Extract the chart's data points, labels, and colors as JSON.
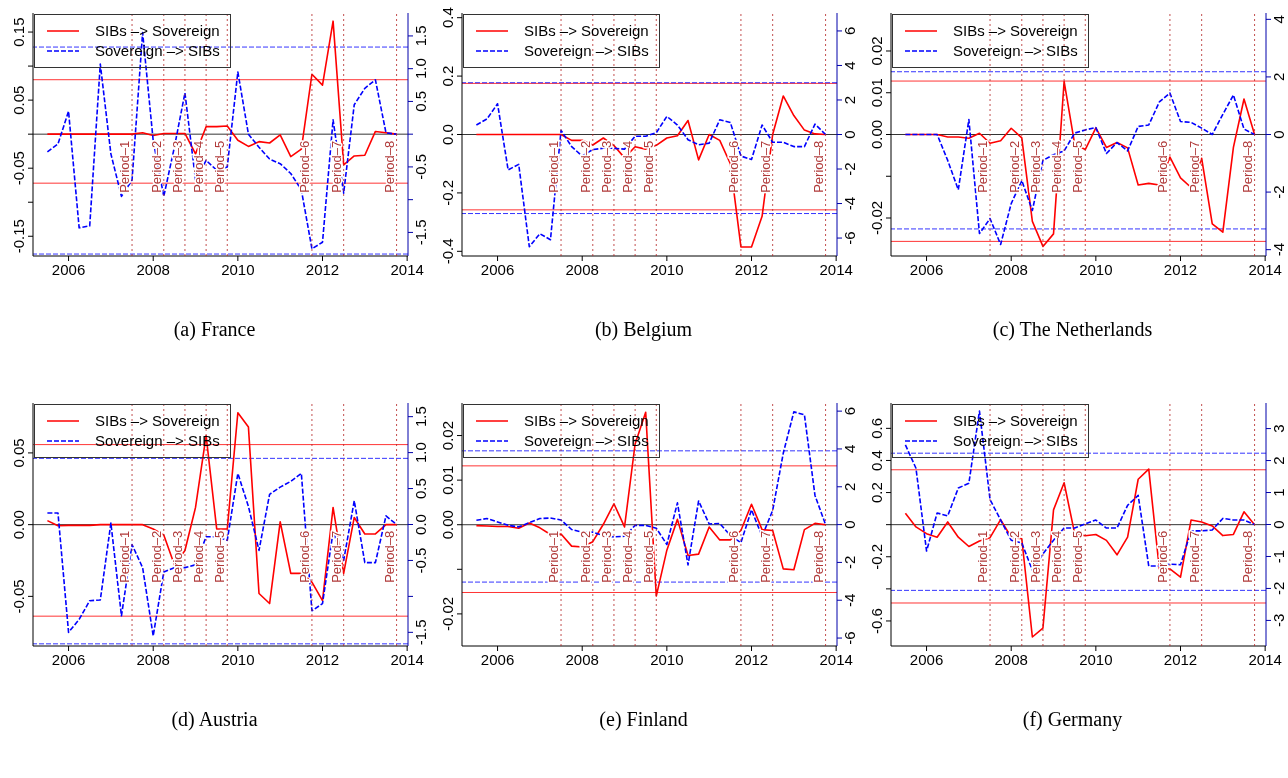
{
  "chart_data": [
    {
      "type": "line",
      "title": "(a) France",
      "x": [
        2005.5,
        2005.75,
        2006,
        2006.25,
        2006.5,
        2006.75,
        2007,
        2007.25,
        2007.5,
        2007.75,
        2008,
        2008.25,
        2008.5,
        2008.75,
        2009,
        2009.25,
        2009.5,
        2009.75,
        2010,
        2010.25,
        2010.5,
        2010.75,
        2011,
        2011.25,
        2011.5,
        2011.75,
        2012,
        2012.25,
        2012.5,
        2012.75,
        2013,
        2013.25,
        2013.5,
        2013.75
      ],
      "series": [
        {
          "name": "SIBs –> Sovereign",
          "color": "#ff0000",
          "line_style": "solid",
          "values": [
            0,
            0,
            0,
            0,
            0,
            0,
            0,
            0,
            0,
            0.002,
            -0.002,
            0.001,
            0.001,
            0.001,
            -0.029,
            0.011,
            0.011,
            0.012,
            -0.009,
            -0.018,
            -0.011,
            -0.013,
            -0.001,
            -0.033,
            -0.022,
            0.088,
            0.072,
            0.166,
            -0.045,
            -0.032,
            -0.031,
            0.004,
            0.002,
            0
          ]
        },
        {
          "name": "Sovereign –> SIBs",
          "color": "#0000ff",
          "line_style": "dashed",
          "axis": "y2",
          "values": [
            -0.27,
            -0.15,
            0.35,
            -1.43,
            -1.4,
            1.07,
            -0.3,
            -0.95,
            -0.7,
            1.55,
            -0.1,
            -0.95,
            -0.2,
            0.63,
            -0.7,
            -0.4,
            -0.55,
            -0.5,
            0.95,
            0,
            -0.2,
            -0.38,
            -0.45,
            -0.6,
            -0.85,
            -1.75,
            -1.65,
            0.22,
            -0.9,
            0.45,
            0.7,
            0.83,
            0.02,
            0
          ]
        }
      ],
      "xlim": [
        2005.16,
        2014.02
      ],
      "xticks": [
        2006,
        2008,
        2010,
        2012,
        2014
      ],
      "ylim": [
        -0.179,
        0.178
      ],
      "yticks": [
        -0.15,
        {
          "value": -0.1,
          "label": null
        },
        -0.05,
        {
          "value": 0,
          "label": null
        },
        0.05,
        {
          "value": 0.1,
          "label": null
        },
        0.15
      ],
      "y2lim": [
        -1.86,
        1.85
      ],
      "y2ticks": [
        -1.5,
        {
          "value": -1,
          "label": null
        },
        -0.5,
        {
          "value": 0,
          "label": null
        },
        0.5,
        {
          "value": 1,
          "label": "1.0"
        },
        1.5
      ],
      "ref_lines": [
        {
          "axis": "y",
          "value": 0,
          "color": "#000000",
          "line_style": "solid"
        },
        {
          "axis": "y",
          "value": 0.08,
          "color": "#ff0000",
          "line_style": "solid"
        },
        {
          "axis": "y",
          "value": -0.072,
          "color": "#ff0000",
          "line_style": "solid"
        },
        {
          "axis": "y2",
          "value": 1.33,
          "color": "#0000ff",
          "line_style": "dashed"
        },
        {
          "axis": "y2",
          "value": -1.83,
          "color": "#0000ff",
          "line_style": "dashed"
        },
        {
          "axis": "x",
          "value": 2007.5,
          "label": "Period–1",
          "color": "#b22222",
          "line_style": "dotted"
        },
        {
          "axis": "x",
          "value": 2008.25,
          "label": "Period–2",
          "color": "#b22222",
          "line_style": "dotted"
        },
        {
          "axis": "x",
          "value": 2008.75,
          "label": "Period–3",
          "color": "#b22222",
          "line_style": "dotted"
        },
        {
          "axis": "x",
          "value": 2009.25,
          "label": "Period–4",
          "color": "#b22222",
          "line_style": "dotted"
        },
        {
          "axis": "x",
          "value": 2009.75,
          "label": "Period–5",
          "color": "#b22222",
          "line_style": "dotted"
        },
        {
          "axis": "x",
          "value": 2011.75,
          "label": "Period–6",
          "color": "#b22222",
          "line_style": "dotted"
        },
        {
          "axis": "x",
          "value": 2012.5,
          "label": "Period–7",
          "color": "#b22222",
          "line_style": "dotted"
        },
        {
          "axis": "x",
          "value": 2013.75,
          "label": "Period–8",
          "color": "#b22222",
          "line_style": "dotted"
        }
      ],
      "legend": "top left"
    },
    {
      "type": "line",
      "title": "(b) Belgium",
      "x": [
        2005.5,
        2005.75,
        2006,
        2006.25,
        2006.5,
        2006.75,
        2007,
        2007.25,
        2007.5,
        2007.75,
        2008,
        2008.25,
        2008.5,
        2008.75,
        2009,
        2009.25,
        2009.5,
        2009.75,
        2010,
        2010.25,
        2010.5,
        2010.75,
        2011,
        2011.25,
        2011.5,
        2011.75,
        2012,
        2012.25,
        2012.5,
        2012.75,
        2013,
        2013.25,
        2013.5,
        2013.75
      ],
      "series": [
        {
          "name": "SIBs –> Sovereign",
          "color": "#ff0000",
          "line_style": "solid",
          "values": [
            0,
            0,
            0,
            0,
            0,
            0,
            0,
            0,
            0,
            -0.02,
            -0.02,
            -0.036,
            -0.012,
            -0.038,
            -0.08,
            -0.042,
            -0.05,
            -0.037,
            -0.012,
            -0.004,
            0.048,
            -0.087,
            0,
            -0.02,
            -0.1,
            -0.385,
            -0.385,
            -0.28,
            0,
            0.132,
            0.065,
            0.015,
            0.002,
            0
          ]
        },
        {
          "name": "Sovereign –> SIBs",
          "color": "#0000ff",
          "line_style": "dashed",
          "axis": "y2",
          "values": [
            0.55,
            0.9,
            1.78,
            -2.05,
            -1.73,
            -6.5,
            -5.75,
            -6.1,
            0.24,
            -0.7,
            -1.25,
            -0.87,
            -0.8,
            -0.8,
            -0.85,
            -0.1,
            -0.1,
            0.1,
            1.05,
            0.55,
            -0.3,
            -0.6,
            -0.5,
            0.85,
            0.7,
            -1.25,
            -1.45,
            0.55,
            -0.45,
            -0.45,
            -0.7,
            -0.7,
            0.6,
            0
          ]
        }
      ],
      "xlim": [
        2005.16,
        2014.02
      ],
      "xticks": [
        2006,
        2008,
        2010,
        2012,
        2014
      ],
      "ylim": [
        -0.416,
        0.416
      ],
      "yticks": [
        -0.4,
        -0.2,
        {
          "value": 0,
          "label": "0.0"
        },
        0.2,
        0.4
      ],
      "y2lim": [
        -7.04,
        7.04
      ],
      "y2ticks": [
        -6,
        -4,
        -2,
        0,
        2,
        4,
        6
      ],
      "ref_lines": [
        {
          "axis": "y",
          "value": 0,
          "color": "#000000",
          "line_style": "solid"
        },
        {
          "axis": "y",
          "value": 0.175,
          "color": "#ff0000",
          "line_style": "solid"
        },
        {
          "axis": "y",
          "value": -0.258,
          "color": "#ff0000",
          "line_style": "solid"
        },
        {
          "axis": "y2",
          "value": 3,
          "color": "#0000ff",
          "line_style": "dashed"
        },
        {
          "axis": "y2",
          "value": -4.58,
          "color": "#0000ff",
          "line_style": "dashed"
        },
        {
          "axis": "x",
          "value": 2007.5,
          "label": "Period–1",
          "color": "#b22222",
          "line_style": "dotted"
        },
        {
          "axis": "x",
          "value": 2008.25,
          "label": "Period–2",
          "color": "#b22222",
          "line_style": "dotted"
        },
        {
          "axis": "x",
          "value": 2008.75,
          "label": "Period–3",
          "color": "#b22222",
          "line_style": "dotted"
        },
        {
          "axis": "x",
          "value": 2009.25,
          "label": "Period–4",
          "color": "#b22222",
          "line_style": "dotted"
        },
        {
          "axis": "x",
          "value": 2009.75,
          "label": "Period–5",
          "color": "#b22222",
          "line_style": "dotted"
        },
        {
          "axis": "x",
          "value": 2011.75,
          "label": "Period–6",
          "color": "#b22222",
          "line_style": "dotted"
        },
        {
          "axis": "x",
          "value": 2012.5,
          "label": "Period–7",
          "color": "#b22222",
          "line_style": "dotted"
        },
        {
          "axis": "x",
          "value": 2013.75,
          "label": "Period–8",
          "color": "#b22222",
          "line_style": "dotted"
        }
      ],
      "legend": "top left"
    },
    {
      "type": "line",
      "title": "(c) The Netherlands",
      "x": [
        2005.5,
        2005.75,
        2006,
        2006.25,
        2006.5,
        2006.75,
        2007,
        2007.25,
        2007.5,
        2007.75,
        2008,
        2008.25,
        2008.5,
        2008.75,
        2009,
        2009.25,
        2009.5,
        2009.75,
        2010,
        2010.25,
        2010.5,
        2010.75,
        2011,
        2011.25,
        2011.5,
        2011.75,
        2012,
        2012.25,
        2012.5,
        2012.75,
        2013,
        2013.25,
        2013.5,
        2013.75
      ],
      "series": [
        {
          "name": "SIBs –> Sovereign",
          "color": "#ff0000",
          "line_style": "solid",
          "values": [
            0,
            0,
            0,
            0,
            -0.0006,
            -0.0006,
            -0.0009,
            0.0003,
            -0.0021,
            -0.0015,
            0.0015,
            -0.0008,
            -0.0208,
            -0.0268,
            -0.0238,
            0.0127,
            -0.0023,
            -0.0036,
            0.0016,
            -0.0031,
            -0.0019,
            -0.0032,
            -0.0121,
            -0.0117,
            -0.0121,
            -0.0054,
            -0.0104,
            -0.0127,
            -0.0057,
            -0.0214,
            -0.0234,
            -0.0031,
            0.0085,
            0
          ]
        },
        {
          "name": "Sovereign –> SIBs",
          "color": "#0000ff",
          "line_style": "dashed",
          "axis": "y2",
          "values": [
            0,
            0,
            0,
            0,
            -0.9,
            -1.92,
            0.52,
            -3.44,
            -2.92,
            -3.82,
            -2.4,
            -1.6,
            -2.64,
            -0.9,
            -0.7,
            -0.57,
            0.05,
            0.16,
            0.24,
            -0.66,
            -0.28,
            -0.57,
            0.28,
            0.33,
            1.13,
            1.44,
            0.45,
            0.42,
            0.22,
            0,
            0.7,
            1.37,
            0.19,
            0
          ]
        }
      ],
      "xlim": [
        2005.16,
        2014.02
      ],
      "xticks": [
        2006,
        2008,
        2010,
        2012,
        2014
      ],
      "ylim": [
        -0.0291,
        0.0291
      ],
      "yticks": [
        -0.02,
        {
          "value": -0.01,
          "label": null
        },
        {
          "value": 0,
          "label": "0.00"
        },
        0.01,
        0.02
      ],
      "y2lim": [
        -4.22,
        4.22
      ],
      "y2ticks": [
        -4,
        -2,
        0,
        2,
        4
      ],
      "ref_lines": [
        {
          "axis": "y",
          "value": 0,
          "color": "#000000",
          "line_style": "solid"
        },
        {
          "axis": "y",
          "value": 0.0128,
          "color": "#ff0000",
          "line_style": "solid"
        },
        {
          "axis": "y",
          "value": -0.0256,
          "color": "#ff0000",
          "line_style": "solid"
        },
        {
          "axis": "y2",
          "value": 2.18,
          "color": "#0000ff",
          "line_style": "dashed"
        },
        {
          "axis": "y2",
          "value": -3.28,
          "color": "#0000ff",
          "line_style": "dashed"
        },
        {
          "axis": "x",
          "value": 2007.5,
          "label": "Period–1",
          "color": "#b22222",
          "line_style": "dotted"
        },
        {
          "axis": "x",
          "value": 2008.25,
          "label": "Period–2",
          "color": "#b22222",
          "line_style": "dotted"
        },
        {
          "axis": "x",
          "value": 2008.75,
          "label": "Period–3",
          "color": "#b22222",
          "line_style": "dotted"
        },
        {
          "axis": "x",
          "value": 2009.25,
          "label": "Period–4",
          "color": "#b22222",
          "line_style": "dotted"
        },
        {
          "axis": "x",
          "value": 2009.75,
          "label": "Period–5",
          "color": "#b22222",
          "line_style": "dotted"
        },
        {
          "axis": "x",
          "value": 2011.75,
          "label": "Period–6",
          "color": "#b22222",
          "line_style": "dotted"
        },
        {
          "axis": "x",
          "value": 2012.5,
          "label": "Period–7",
          "color": "#b22222",
          "line_style": "dotted"
        },
        {
          "axis": "x",
          "value": 2013.75,
          "label": "Period–8",
          "color": "#b22222",
          "line_style": "dotted"
        }
      ],
      "legend": "top left"
    },
    {
      "type": "line",
      "title": "(d) Austria",
      "x": [
        2005.5,
        2005.75,
        2006,
        2006.25,
        2006.5,
        2006.75,
        2007,
        2007.25,
        2007.5,
        2007.75,
        2008,
        2008.25,
        2008.5,
        2008.75,
        2009,
        2009.25,
        2009.5,
        2009.75,
        2010,
        2010.25,
        2010.5,
        2010.75,
        2011,
        2011.25,
        2011.5,
        2011.75,
        2012,
        2012.25,
        2012.5,
        2012.75,
        2013,
        2013.25,
        2013.5,
        2013.75
      ],
      "series": [
        {
          "name": "SIBs –> Sovereign",
          "color": "#ff0000",
          "line_style": "solid",
          "values": [
            0.0028,
            -0.0008,
            -0.0005,
            -0.0005,
            -0.0005,
            0,
            0,
            0,
            0,
            0,
            -0.003,
            -0.0072,
            -0.028,
            -0.018,
            0.012,
            0.062,
            -0.003,
            -0.003,
            0.078,
            0.068,
            -0.048,
            -0.055,
            0.002,
            -0.034,
            -0.034,
            -0.04,
            -0.053,
            0.012,
            -0.034,
            0.005,
            -0.0065,
            -0.0065,
            0,
            0
          ]
        },
        {
          "name": "Sovereign –> SIBs",
          "color": "#0000ff",
          "line_style": "dashed",
          "axis": "y2",
          "values": [
            0.16,
            0.16,
            -1.5,
            -1.32,
            -1.06,
            -1.05,
            0.02,
            -1.27,
            -0.28,
            -0.6,
            -1.55,
            -0.66,
            -0.6,
            -0.6,
            -0.56,
            -0.17,
            -0.17,
            -0.22,
            0.71,
            0.25,
            -0.36,
            0.42,
            0.52,
            0.6,
            0.71,
            -1.2,
            -1.1,
            -0.1,
            -0.5,
            0.33,
            -0.53,
            -0.53,
            0.12,
            0
          ]
        }
      ],
      "xlim": [
        2005.16,
        2014.02
      ],
      "xticks": [
        2006,
        2008,
        2010,
        2012,
        2014
      ],
      "ylim": [
        -0.0846,
        0.0848
      ],
      "yticks": [
        -0.05,
        {
          "value": 0,
          "label": "0.00"
        },
        0.05
      ],
      "y2lim": [
        -1.69,
        1.69
      ],
      "y2ticks": [
        -1.5,
        {
          "value": -1,
          "label": null
        },
        -0.5,
        {
          "value": 0,
          "label": "0.0"
        },
        0.5,
        {
          "value": 1,
          "label": "1.0"
        },
        1.5
      ],
      "ref_lines": [
        {
          "axis": "y",
          "value": 0,
          "color": "#000000",
          "line_style": "solid"
        },
        {
          "axis": "y",
          "value": 0.0558,
          "color": "#ff0000",
          "line_style": "solid"
        },
        {
          "axis": "y",
          "value": -0.0638,
          "color": "#ff0000",
          "line_style": "solid"
        },
        {
          "axis": "y2",
          "value": 0.92,
          "color": "#0000ff",
          "line_style": "dashed"
        },
        {
          "axis": "y2",
          "value": -1.66,
          "color": "#0000ff",
          "line_style": "dashed"
        },
        {
          "axis": "x",
          "value": 2007.5,
          "label": "Period–1",
          "color": "#b22222",
          "line_style": "dotted"
        },
        {
          "axis": "x",
          "value": 2008.25,
          "label": "Period–2",
          "color": "#b22222",
          "line_style": "dotted"
        },
        {
          "axis": "x",
          "value": 2008.75,
          "label": "Period–3",
          "color": "#b22222",
          "line_style": "dotted"
        },
        {
          "axis": "x",
          "value": 2009.25,
          "label": "Period–4",
          "color": "#b22222",
          "line_style": "dotted"
        },
        {
          "axis": "x",
          "value": 2009.75,
          "label": "Period–5",
          "color": "#b22222",
          "line_style": "dotted"
        },
        {
          "axis": "x",
          "value": 2011.75,
          "label": "Period–6",
          "color": "#b22222",
          "line_style": "dotted"
        },
        {
          "axis": "x",
          "value": 2012.5,
          "label": "Period–7",
          "color": "#b22222",
          "line_style": "dotted"
        },
        {
          "axis": "x",
          "value": 2013.75,
          "label": "Period–8",
          "color": "#b22222",
          "line_style": "dotted"
        }
      ],
      "legend": "top left"
    },
    {
      "type": "line",
      "title": "(e) Finland",
      "x": [
        2005.5,
        2005.75,
        2006,
        2006.25,
        2006.5,
        2006.75,
        2007,
        2007.25,
        2007.5,
        2007.75,
        2008,
        2008.25,
        2008.5,
        2008.75,
        2009,
        2009.25,
        2009.5,
        2009.75,
        2010,
        2010.25,
        2010.5,
        2010.75,
        2011,
        2011.25,
        2011.5,
        2011.75,
        2012,
        2012.25,
        2012.5,
        2012.75,
        2013,
        2013.25,
        2013.5,
        2013.75
      ],
      "series": [
        {
          "name": "SIBs –> Sovereign",
          "color": "#ff0000",
          "line_style": "solid",
          "values": [
            -0.0002,
            -0.0003,
            -0.0004,
            -0.0004,
            -0.0008,
            0.0004,
            -0.0007,
            -0.0022,
            -0.0021,
            -0.0048,
            -0.005,
            -0.0038,
            0.0001,
            0.0047,
            -0.0005,
            0.0181,
            0.0252,
            -0.016,
            -0.0057,
            0.0012,
            -0.0069,
            -0.0066,
            -0.0005,
            -0.0034,
            -0.0034,
            -0.0013,
            0.0046,
            -0.0011,
            -0.0013,
            -0.0099,
            -0.0101,
            -0.0011,
            0.0003,
            0
          ]
        },
        {
          "name": "Sovereign –> SIBs",
          "color": "#0000ff",
          "line_style": "dashed",
          "axis": "y2",
          "values": [
            0.23,
            0.32,
            0.14,
            -0.04,
            -0.12,
            0.1,
            0.32,
            0.35,
            0.24,
            -0.26,
            -0.4,
            -0.4,
            -0.58,
            -0.65,
            -0.62,
            -0.04,
            -0.04,
            -0.19,
            -1.05,
            1.15,
            -2.13,
            1.25,
            0.03,
            0.06,
            -0.58,
            -0.95,
            0.78,
            -0.62,
            0.75,
            3.77,
            5.96,
            5.81,
            1.54,
            0
          ]
        }
      ],
      "xlim": [
        2005.16,
        2014.02
      ],
      "xticks": [
        2006,
        2008,
        2010,
        2012,
        2014
      ],
      "ylim": [
        -0.0272,
        0.0273
      ],
      "yticks": [
        -0.02,
        {
          "value": -0.01,
          "label": null
        },
        {
          "value": 0,
          "label": "0.00"
        },
        0.01,
        0.02
      ],
      "y2lim": [
        -6.42,
        6.43
      ],
      "y2ticks": [
        -6,
        -4,
        -2,
        0,
        2,
        4,
        6
      ],
      "ref_lines": [
        {
          "axis": "y",
          "value": 0,
          "color": "#000000",
          "line_style": "solid"
        },
        {
          "axis": "y",
          "value": 0.0132,
          "color": "#ff0000",
          "line_style": "solid"
        },
        {
          "axis": "y",
          "value": -0.0152,
          "color": "#ff0000",
          "line_style": "solid"
        },
        {
          "axis": "y2",
          "value": 3.9,
          "color": "#0000ff",
          "line_style": "dashed"
        },
        {
          "axis": "y2",
          "value": -3.04,
          "color": "#0000ff",
          "line_style": "dashed"
        },
        {
          "axis": "x",
          "value": 2007.5,
          "label": "Period–1",
          "color": "#b22222",
          "line_style": "dotted"
        },
        {
          "axis": "x",
          "value": 2008.25,
          "label": "Period–2",
          "color": "#b22222",
          "line_style": "dotted"
        },
        {
          "axis": "x",
          "value": 2008.75,
          "label": "Period–3",
          "color": "#b22222",
          "line_style": "dotted"
        },
        {
          "axis": "x",
          "value": 2009.25,
          "label": "Period–4",
          "color": "#b22222",
          "line_style": "dotted"
        },
        {
          "axis": "x",
          "value": 2009.75,
          "label": "Period–5",
          "color": "#b22222",
          "line_style": "dotted"
        },
        {
          "axis": "x",
          "value": 2011.75,
          "label": "Period–6",
          "color": "#b22222",
          "line_style": "dotted"
        },
        {
          "axis": "x",
          "value": 2012.5,
          "label": "Period–7",
          "color": "#b22222",
          "line_style": "dotted"
        },
        {
          "axis": "x",
          "value": 2013.75,
          "label": "Period–8",
          "color": "#b22222",
          "line_style": "dotted"
        }
      ],
      "legend": "top left"
    },
    {
      "type": "line",
      "title": "(f) Germany",
      "x": [
        2005.5,
        2005.75,
        2006,
        2006.25,
        2006.5,
        2006.75,
        2007,
        2007.25,
        2007.5,
        2007.75,
        2008,
        2008.25,
        2008.5,
        2008.75,
        2009,
        2009.25,
        2009.5,
        2009.75,
        2010,
        2010.25,
        2010.5,
        2010.75,
        2011,
        2011.25,
        2011.5,
        2011.75,
        2012,
        2012.25,
        2012.5,
        2012.75,
        2013,
        2013.25,
        2013.5,
        2013.75
      ],
      "series": [
        {
          "name": "SIBs –> Sovereign",
          "color": "#ff0000",
          "line_style": "solid",
          "values": [
            0.071,
            -0.014,
            -0.056,
            -0.078,
            0.017,
            -0.078,
            -0.136,
            -0.102,
            -0.081,
            0.031,
            -0.078,
            -0.088,
            -0.7,
            -0.644,
            0.092,
            0.261,
            -0.056,
            -0.069,
            -0.061,
            -0.098,
            -0.188,
            -0.078,
            0.283,
            0.346,
            -0.276,
            -0.276,
            -0.327,
            0.029,
            0.017,
            -0.008,
            -0.068,
            -0.061,
            0.08,
            0
          ]
        },
        {
          "name": "Sovereign –> SIBs",
          "color": "#0000ff",
          "line_style": "dashed",
          "axis": "y2",
          "values": [
            2.49,
            1.76,
            -0.83,
            0.36,
            0.27,
            1.14,
            1.29,
            3.55,
            0.78,
            0.14,
            -0.49,
            -0.58,
            -1.43,
            -0.92,
            -0.49,
            -0.11,
            -0.11,
            0.02,
            0.14,
            -0.11,
            -0.11,
            0.6,
            0.91,
            -1.3,
            -1.3,
            -1.24,
            -1.26,
            -0.2,
            -0.2,
            -0.17,
            0.19,
            0.14,
            0.14,
            0
          ]
        }
      ],
      "xlim": [
        2005.16,
        2014.02
      ],
      "xticks": [
        2006,
        2008,
        2010,
        2012,
        2014
      ],
      "ylim": [
        -0.756,
        0.758
      ],
      "yticks": [
        -0.6,
        {
          "value": -0.4,
          "label": null
        },
        -0.2,
        {
          "value": 0,
          "label": null
        },
        0.2,
        0.4,
        0.6
      ],
      "y2lim": [
        -3.8,
        3.8
      ],
      "y2ticks": [
        -3,
        -2,
        -1,
        0,
        1,
        2,
        3
      ],
      "ref_lines": [
        {
          "axis": "y",
          "value": 0,
          "color": "#000000",
          "line_style": "solid"
        },
        {
          "axis": "y",
          "value": 0.342,
          "color": "#ff0000",
          "line_style": "solid"
        },
        {
          "axis": "y",
          "value": -0.488,
          "color": "#ff0000",
          "line_style": "solid"
        },
        {
          "axis": "y2",
          "value": 2.23,
          "color": "#0000ff",
          "line_style": "dashed"
        },
        {
          "axis": "y2",
          "value": -2.06,
          "color": "#0000ff",
          "line_style": "dashed"
        },
        {
          "axis": "x",
          "value": 2007.5,
          "label": "Period–1",
          "color": "#b22222",
          "line_style": "dotted"
        },
        {
          "axis": "x",
          "value": 2008.25,
          "label": "Period–2",
          "color": "#b22222",
          "line_style": "dotted"
        },
        {
          "axis": "x",
          "value": 2008.75,
          "label": "Period–3",
          "color": "#b22222",
          "line_style": "dotted"
        },
        {
          "axis": "x",
          "value": 2009.25,
          "label": "Period–4",
          "color": "#b22222",
          "line_style": "dotted"
        },
        {
          "axis": "x",
          "value": 2009.75,
          "label": "Period–5",
          "color": "#b22222",
          "line_style": "dotted"
        },
        {
          "axis": "x",
          "value": 2011.75,
          "label": "Period–6",
          "color": "#b22222",
          "line_style": "dotted"
        },
        {
          "axis": "x",
          "value": 2012.5,
          "label": "Period–7",
          "color": "#b22222",
          "line_style": "dotted"
        },
        {
          "axis": "x",
          "value": 2013.75,
          "label": "Period–8",
          "color": "#b22222",
          "line_style": "dotted"
        }
      ],
      "legend": "top left"
    }
  ]
}
